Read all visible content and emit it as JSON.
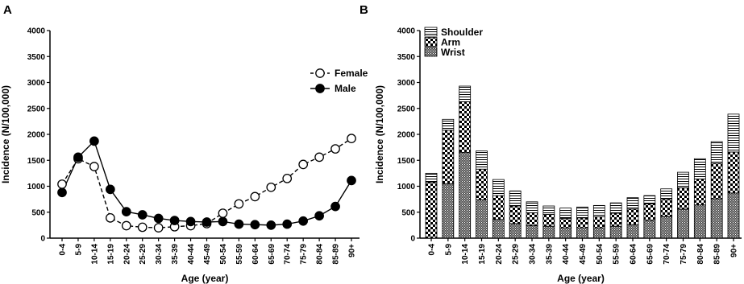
{
  "chart_data": [
    {
      "panel": "A",
      "type": "line",
      "xlabel": "Age (year)",
      "ylabel": "Incidence (N/100,000)",
      "ylim": [
        0,
        4000
      ],
      "yticks": [
        0,
        500,
        1000,
        1500,
        2000,
        2500,
        3000,
        3500,
        4000
      ],
      "categories": [
        "0-4",
        "5-9",
        "10-14",
        "15-19",
        "20-24",
        "25-29",
        "30-34",
        "35-39",
        "40-44",
        "45-49",
        "50-54",
        "55-59",
        "60-64",
        "65-69",
        "70-74",
        "75-79",
        "80-84",
        "85-89",
        "90+"
      ],
      "legend_position": "right",
      "series": [
        {
          "name": "Female",
          "marker": "open-circle",
          "line": "dashed",
          "values": [
            1040,
            1530,
            1380,
            390,
            240,
            210,
            200,
            220,
            240,
            280,
            480,
            660,
            800,
            980,
            1150,
            1420,
            1560,
            1720,
            1920
          ]
        },
        {
          "name": "Male",
          "marker": "filled-circle",
          "line": "solid",
          "values": [
            880,
            1560,
            1870,
            940,
            510,
            450,
            380,
            340,
            320,
            310,
            320,
            270,
            260,
            250,
            270,
            330,
            430,
            610,
            1110
          ]
        }
      ]
    },
    {
      "panel": "B",
      "type": "bar",
      "stacked": true,
      "xlabel": "Age (year)",
      "ylabel": "Incidence (N/100,000)",
      "ylim": [
        0,
        4000
      ],
      "yticks": [
        0,
        500,
        1000,
        1500,
        2000,
        2500,
        3000,
        3500,
        4000
      ],
      "categories": [
        "0-4",
        "5-9",
        "10-14",
        "15-19",
        "20-24",
        "25-29",
        "30-34",
        "35-39",
        "40-44",
        "45-49",
        "50-54",
        "55-59",
        "60-64",
        "65-69",
        "70-74",
        "75-79",
        "80-84",
        "85-89",
        "90+"
      ],
      "legend_position": "top-left",
      "series": [
        {
          "name": "Wrist",
          "pattern": "dense-dots",
          "values": [
            0,
            1050,
            1650,
            740,
            360,
            280,
            240,
            230,
            200,
            200,
            200,
            230,
            260,
            340,
            420,
            560,
            640,
            760,
            870
          ]
        },
        {
          "name": "Arm",
          "pattern": "checker",
          "values": [
            1080,
            1030,
            980,
            590,
            460,
            340,
            250,
            230,
            180,
            190,
            210,
            250,
            300,
            320,
            330,
            410,
            500,
            680,
            790
          ]
        },
        {
          "name": "Shoulder",
          "pattern": "horizontal-lines",
          "values": [
            170,
            210,
            300,
            350,
            310,
            290,
            210,
            160,
            200,
            210,
            220,
            200,
            220,
            160,
            200,
            300,
            390,
            420,
            730
          ]
        }
      ]
    }
  ]
}
